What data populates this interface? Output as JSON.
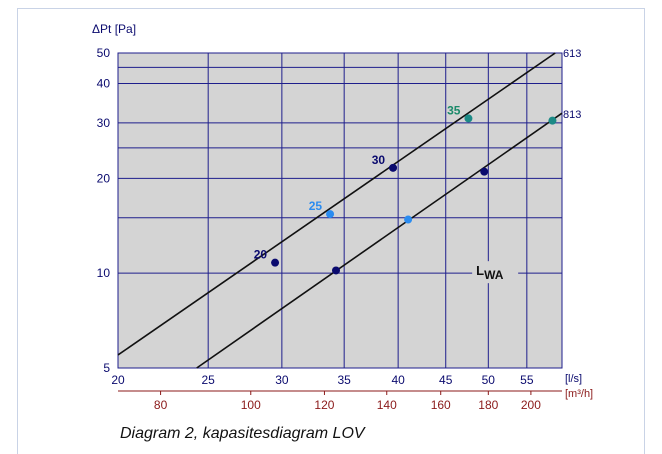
{
  "chart_data": {
    "type": "line",
    "x_scale": "log",
    "y_scale": "log",
    "grid": true,
    "xlim": [
      20,
      60
    ],
    "ylim": [
      5,
      50
    ],
    "ylabel": "ΔPt [Pa]",
    "xlabel": "[l/s]",
    "secondary_xlabel": "[m³/h]",
    "x_ticks": [
      20,
      25,
      30,
      35,
      40,
      45,
      50,
      55
    ],
    "x_ticks_m3h": [
      80,
      100,
      120,
      140,
      160,
      180,
      200
    ],
    "y_ticks": [
      5,
      10,
      20,
      30,
      40,
      50
    ],
    "y_grid_extra": [
      15,
      25,
      45
    ],
    "series": [
      {
        "name": "613",
        "x": [
          20,
          59
        ],
        "y": [
          5.5,
          50
        ],
        "points": [
          {
            "x": 29.5,
            "y": 10.8,
            "label": "20",
            "color": "#0a0a6e"
          },
          {
            "x": 33.8,
            "y": 15.4,
            "label": "25",
            "color": "#2b8cf0"
          },
          {
            "x": 39.5,
            "y": 21.6,
            "label": "30",
            "color": "#0a0a6e"
          },
          {
            "x": 47.6,
            "y": 31.0,
            "label": "35",
            "color": "#1b8a86"
          }
        ]
      },
      {
        "name": "813",
        "x": [
          24.3,
          60
        ],
        "y": [
          5,
          32.2
        ],
        "points": [
          {
            "x": 34.3,
            "y": 10.2,
            "label": "",
            "color": "#0a0a6e"
          },
          {
            "x": 41.0,
            "y": 14.8,
            "label": "",
            "color": "#2b8cf0"
          },
          {
            "x": 49.5,
            "y": 21.0,
            "label": "",
            "color": "#0a0a6e"
          },
          {
            "x": 58.6,
            "y": 30.5,
            "label": "",
            "color": "#1b8a86"
          }
        ]
      }
    ],
    "annotation": {
      "text": "L",
      "sub": "WA",
      "x": 49,
      "y": 10
    }
  },
  "caption": "Diagram 2, kapasitesdiagram LOV",
  "colors": {
    "plot_bg": "#d4d4d4",
    "grid": "#1e1e8c",
    "axis_text": "#0a0a6e",
    "secondary_text": "#8b1a1a",
    "label_35": "#1b8a6a"
  }
}
